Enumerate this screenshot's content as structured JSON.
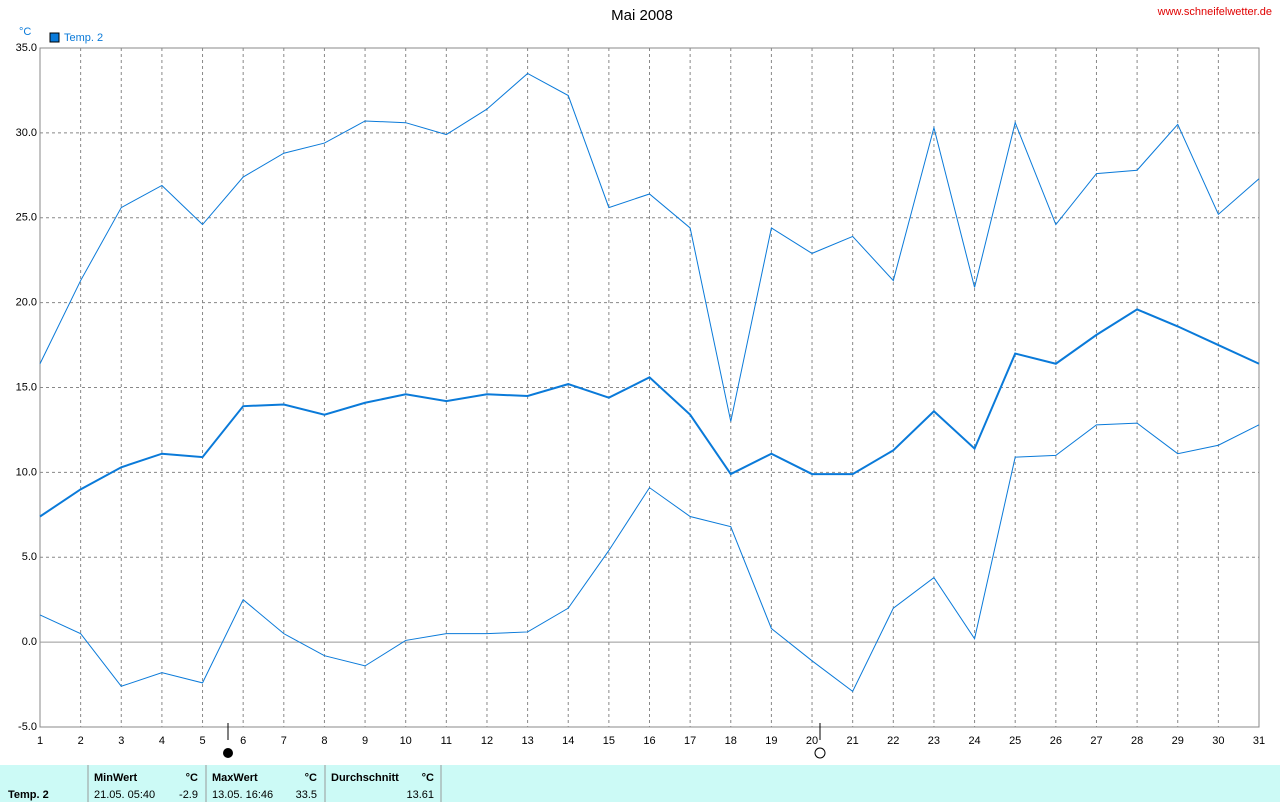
{
  "chart_data": {
    "type": "line",
    "title": "Mai 2008",
    "source": "www.schneifelwetter.de",
    "y_unit": "°C",
    "legend": "Temp. 2",
    "x": [
      1,
      2,
      3,
      4,
      5,
      6,
      7,
      8,
      9,
      10,
      11,
      12,
      13,
      14,
      15,
      16,
      17,
      18,
      19,
      20,
      21,
      22,
      23,
      24,
      25,
      26,
      27,
      28,
      29,
      30,
      31
    ],
    "xlim": [
      1,
      31
    ],
    "xticks": [
      1,
      2,
      3,
      4,
      5,
      6,
      7,
      8,
      9,
      10,
      11,
      12,
      13,
      14,
      15,
      16,
      17,
      18,
      19,
      20,
      21,
      22,
      23,
      24,
      25,
      26,
      27,
      28,
      29,
      30,
      31
    ],
    "ylim": [
      -5,
      35
    ],
    "yticks": [
      {
        "value": -5,
        "label": "-5.0"
      },
      {
        "value": 0,
        "label": "0.0"
      },
      {
        "value": 5,
        "label": "5.0"
      },
      {
        "value": 10,
        "label": "10.0"
      },
      {
        "value": 15,
        "label": "15.0"
      },
      {
        "value": 20,
        "label": "20.0"
      },
      {
        "value": 25,
        "label": "25.0"
      },
      {
        "value": 30,
        "label": "30.0"
      },
      {
        "value": 35,
        "label": "35.0"
      }
    ],
    "grid": true,
    "series": [
      {
        "color": "#0a7ad9",
        "width": 1,
        "values": [
          16.4,
          21.3,
          25.6,
          26.9,
          24.6,
          27.4,
          28.8,
          29.4,
          30.7,
          30.6,
          29.9,
          31.4,
          33.5,
          32.2,
          25.6,
          26.4,
          24.4,
          13.0,
          24.4,
          22.9,
          23.9,
          21.3,
          30.3,
          20.9,
          30.6,
          24.6,
          27.6,
          27.8,
          30.5,
          25.2,
          27.3
        ]
      },
      {
        "color": "#0a7ad9",
        "width": 2,
        "values": [
          7.4,
          9.0,
          10.3,
          11.1,
          10.9,
          13.9,
          14.0,
          13.4,
          14.1,
          14.6,
          14.2,
          14.6,
          14.5,
          15.2,
          14.4,
          15.6,
          13.4,
          9.9,
          11.1,
          9.9,
          9.9,
          11.3,
          13.6,
          11.4,
          17.0,
          16.4,
          18.1,
          19.6,
          18.6,
          17.5,
          16.4
        ]
      },
      {
        "color": "#0a7ad9",
        "width": 1,
        "values": [
          1.6,
          0.5,
          -2.6,
          -1.8,
          -2.4,
          2.5,
          0.5,
          -0.8,
          -1.4,
          0.1,
          0.5,
          0.5,
          0.6,
          2.0,
          5.4,
          9.1,
          7.4,
          6.8,
          0.8,
          -1.1,
          -2.9,
          2.0,
          3.8,
          0.2,
          10.9,
          11.0,
          12.8,
          12.9,
          11.1,
          11.6,
          12.8
        ]
      }
    ]
  },
  "stats": {
    "row_label": "Temp. 2",
    "unit": "°C",
    "min": {
      "label": "MinWert",
      "time": "21.05. 05:40",
      "value": -2.9
    },
    "max": {
      "label": "MaxWert",
      "time": "13.05. 16:46",
      "value": 33.5
    },
    "avg": {
      "label": "Durchschnitt",
      "value": 13.61
    }
  }
}
